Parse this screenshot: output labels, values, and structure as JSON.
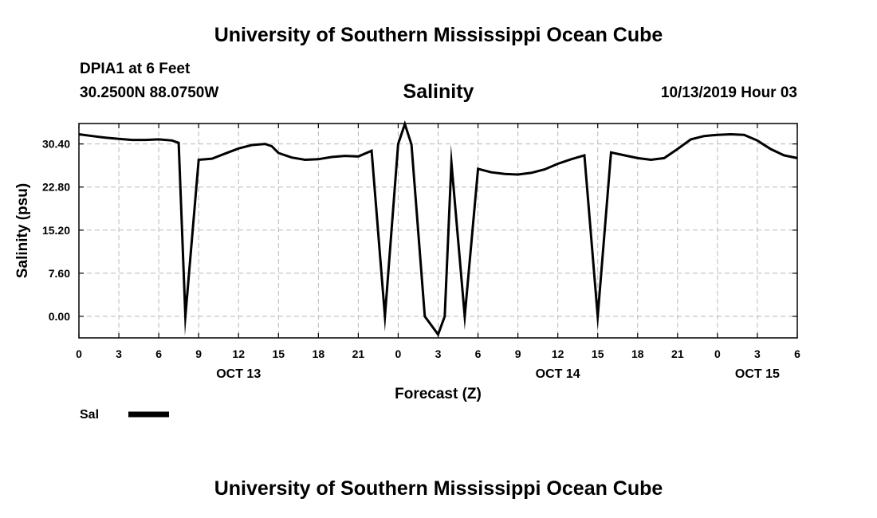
{
  "header": {
    "title": "University of Southern Mississippi Ocean Cube",
    "station": "DPIA1 at 6 Feet",
    "coordinates": "30.2500N 88.0750W",
    "datetime": "10/13/2019 Hour 03"
  },
  "footer": {
    "title": "University of Southern Mississippi Ocean Cube"
  },
  "chart_data": {
    "type": "line",
    "title": "Salinity",
    "xlabel": "Forecast (Z)",
    "ylabel": "Salinity (psu)",
    "xlim": [
      0,
      54
    ],
    "ylim": [
      -3.8,
      34.0
    ],
    "yticks": [
      0.0,
      7.6,
      15.2,
      22.8,
      30.4
    ],
    "ytick_labels": [
      "0.00",
      "7.60",
      "15.20",
      "22.80",
      "30.40"
    ],
    "xticks": [
      0,
      3,
      6,
      9,
      12,
      15,
      18,
      21,
      24,
      27,
      30,
      33,
      36,
      39,
      42,
      45,
      48,
      51,
      54
    ],
    "xtick_labels": [
      "0",
      "3",
      "6",
      "9",
      "12",
      "15",
      "18",
      "21",
      "0",
      "3",
      "6",
      "9",
      "12",
      "15",
      "18",
      "21",
      "0",
      "3",
      "6"
    ],
    "day_labels": [
      {
        "x": 12,
        "label": "OCT 13"
      },
      {
        "x": 36,
        "label": "OCT 14"
      },
      {
        "x": 51,
        "label": "OCT 15"
      }
    ],
    "grid": true,
    "legend_position": "bottom-left",
    "series": [
      {
        "name": "Sal",
        "color": "#000000",
        "x": [
          0,
          1,
          2,
          3,
          4,
          5,
          6,
          7,
          7.5,
          8,
          9,
          10,
          11,
          12,
          13,
          14,
          14.5,
          15,
          16,
          17,
          18,
          19,
          20,
          21,
          22,
          23,
          24,
          24.5,
          25,
          26,
          27,
          27.5,
          28,
          29,
          30,
          31,
          32,
          33,
          34,
          35,
          36,
          37,
          38,
          39,
          40,
          41,
          42,
          43,
          44,
          45,
          46,
          47,
          48,
          49,
          50,
          51,
          52,
          53,
          54
        ],
        "y": [
          32.1,
          31.8,
          31.5,
          31.3,
          31.1,
          31.1,
          31.2,
          31.0,
          30.6,
          0.0,
          27.6,
          27.8,
          28.7,
          29.6,
          30.2,
          30.4,
          30.0,
          28.8,
          28.0,
          27.6,
          27.7,
          28.1,
          28.3,
          28.2,
          29.2,
          0.0,
          30.4,
          33.9,
          30.3,
          0.0,
          -3.2,
          0.0,
          27.1,
          0.0,
          26.0,
          25.4,
          25.1,
          25.0,
          25.3,
          25.9,
          26.9,
          27.7,
          28.4,
          0.0,
          28.9,
          28.4,
          27.9,
          27.6,
          27.9,
          29.5,
          31.2,
          31.8,
          32.0,
          32.1,
          32.0,
          31.0,
          29.5,
          28.4,
          27.9
        ]
      }
    ]
  }
}
